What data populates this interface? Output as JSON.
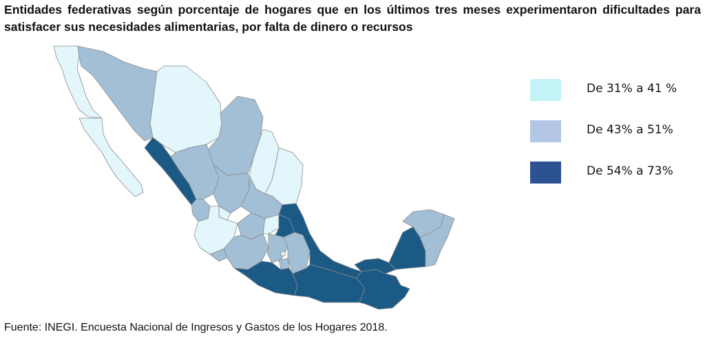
{
  "title": "Entidades federativas según porcentaje de hogares que en los últimos tres meses experimentaron dificultades para satisfacer sus necesidades alimentarias, por falta de dinero o recursos",
  "legend": {
    "items": [
      {
        "label": "De 31% a 41 %",
        "color": "#c4f4f8"
      },
      {
        "label": "De 43% a 51%",
        "color": "#b3c6e6"
      },
      {
        "label": "De 54% a 73%",
        "color": "#2d5294"
      }
    ]
  },
  "map_colors": {
    "low": "#e2f6fb",
    "mid": "#a3bfd6",
    "high": "#1c5a86",
    "border": "#8a8a8a"
  },
  "source": "Fuente: INEGI. Encuesta Nacional de Ingresos y Gastos de los Hogares 2018."
}
